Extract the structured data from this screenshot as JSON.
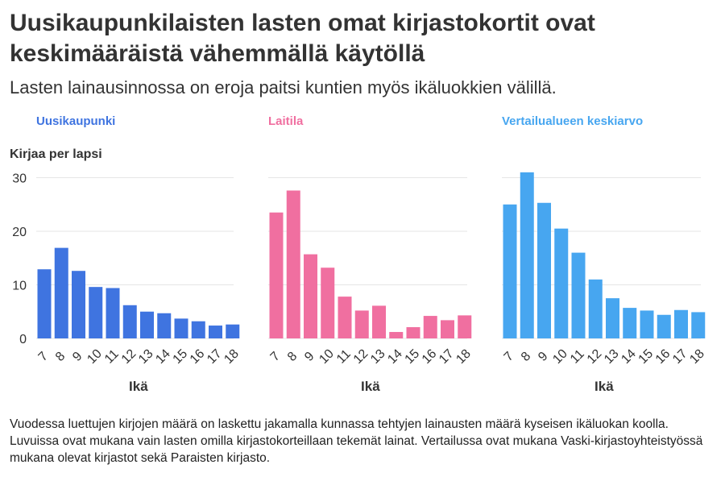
{
  "header": {
    "title": "Uusikaupunkilaisten lasten omat kirjastokortit ovat keskimääräistä vähemmällä käytöllä",
    "subtitle": "Lasten lainausinnossa on eroja paitsi kuntien myös ikäluokkien välillä."
  },
  "footnote": "Vuodessa luettujen kirjojen määrä on laskettu jakamalla kunnassa tehtyjen lainausten määrä kyseisen ikäluokan koolla. Luvuissa ovat mukana vain lasten omilla kirjastokorteillaan tekemät lainat. Vertailussa ovat mukana Vaski-kirjastoyhteistyössä mukana olevat kirjastot sekä Paraisten kirjasto.",
  "chart_data": [
    {
      "type": "bar",
      "title": "Uusikaupunki",
      "color": "#3f74e0",
      "ylabel": "Kirjaa per lapsi",
      "xlabel": "Ikä",
      "ylim": [
        0,
        30
      ],
      "yticks": [
        0,
        10,
        20,
        30
      ],
      "grid": true,
      "categories": [
        "7",
        "8",
        "9",
        "10",
        "11",
        "12",
        "13",
        "14",
        "15",
        "16",
        "17",
        "18"
      ],
      "values": [
        12.9,
        16.9,
        12.6,
        9.6,
        9.4,
        6.2,
        5.0,
        4.7,
        3.7,
        3.2,
        2.4,
        2.6
      ]
    },
    {
      "type": "bar",
      "title": "Laitila",
      "color": "#f06fa0",
      "ylabel": "",
      "xlabel": "Ikä",
      "ylim": [
        0,
        30
      ],
      "yticks": [
        0,
        10,
        20,
        30
      ],
      "grid": true,
      "categories": [
        "7",
        "8",
        "9",
        "10",
        "11",
        "12",
        "13",
        "14",
        "15",
        "16",
        "17",
        "18"
      ],
      "values": [
        23.5,
        27.6,
        15.7,
        13.2,
        7.8,
        5.2,
        6.1,
        1.2,
        2.1,
        4.2,
        3.4,
        4.3
      ]
    },
    {
      "type": "bar",
      "title": "Vertailualueen keskiarvo",
      "color": "#47a6f0",
      "ylabel": "",
      "xlabel": "Ikä",
      "ylim": [
        0,
        30
      ],
      "yticks": [
        0,
        10,
        20,
        30
      ],
      "grid": true,
      "categories": [
        "7",
        "8",
        "9",
        "10",
        "11",
        "12",
        "13",
        "14",
        "15",
        "16",
        "17",
        "18"
      ],
      "values": [
        25.0,
        31.0,
        25.3,
        20.5,
        16.0,
        11.0,
        7.5,
        5.7,
        5.2,
        4.4,
        5.3,
        4.9
      ]
    }
  ],
  "colors": {
    "title_text": "#333333",
    "gridline": "#e6e6e6"
  }
}
